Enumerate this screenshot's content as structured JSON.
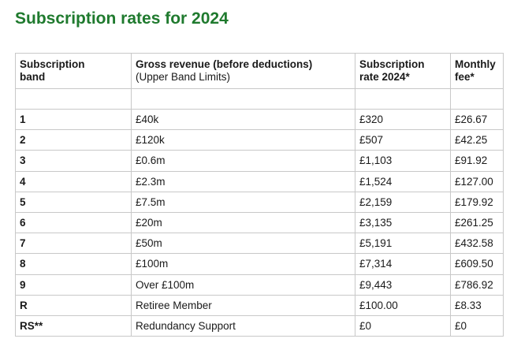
{
  "title": "Subscription rates for 2024",
  "table": {
    "headers": {
      "band": [
        "Subscription",
        "band"
      ],
      "gross": "Gross revenue (before deductions)",
      "gross_sub": "(Upper Band Limits)",
      "rate": [
        "Subscription",
        "rate 2024*"
      ],
      "fee": [
        "Monthly",
        "fee*"
      ]
    },
    "rows": [
      {
        "band": "1",
        "gross": "£40k",
        "rate": "£320",
        "fee": "£26.67"
      },
      {
        "band": "2",
        "gross": "£120k",
        "rate": "£507",
        "fee": "£42.25"
      },
      {
        "band": "3",
        "gross": "£0.6m",
        "rate": "£1,103",
        "fee": "£91.92"
      },
      {
        "band": "4",
        "gross": "£2.3m",
        "rate": "£1,524",
        "fee": "£127.00"
      },
      {
        "band": "5",
        "gross": "£7.5m",
        "rate": "£2,159",
        "fee": "£179.92"
      },
      {
        "band": "6",
        "gross": "£20m",
        "rate": "£3,135",
        "fee": "£261.25"
      },
      {
        "band": "7",
        "gross": "£50m",
        "rate": "£5,191",
        "fee": "£432.58"
      },
      {
        "band": "8",
        "gross": "£100m",
        "rate": "£7,314",
        "fee": "£609.50"
      },
      {
        "band": "9",
        "gross": "Over £100m",
        "rate": "£9,443",
        "fee": "£786.92"
      },
      {
        "band": "R",
        "gross": "Retiree Member",
        "rate": "£100.00",
        "fee": "£8.33"
      },
      {
        "band": "RS**",
        "gross": "Redundancy Support",
        "rate": "£0",
        "fee": "£0"
      }
    ]
  }
}
